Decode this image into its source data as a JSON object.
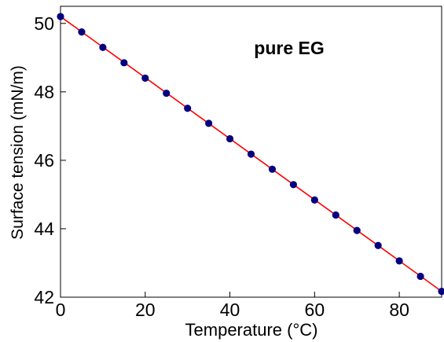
{
  "chart_data": {
    "type": "scatter",
    "annotation": "pure EG",
    "xlabel": "Temperature (°C)",
    "ylabel": "Surface tension (mN/m)",
    "xlim": [
      0,
      90
    ],
    "ylim": [
      42,
      50.5
    ],
    "xticks": [
      0,
      20,
      40,
      60,
      80
    ],
    "yticks": [
      42,
      44,
      46,
      48,
      50
    ],
    "grid": false,
    "legend": "none",
    "series": [
      {
        "kind": "points",
        "marker_color": "#000080",
        "x": [
          0,
          5,
          10,
          15,
          20,
          25,
          30,
          35,
          40,
          45,
          50,
          55,
          60,
          65,
          70,
          75,
          80,
          85,
          90
        ],
        "y": [
          50.2,
          49.75,
          49.3,
          48.85,
          48.4,
          47.96,
          47.52,
          47.08,
          46.63,
          46.18,
          45.74,
          45.29,
          44.84,
          44.4,
          43.95,
          43.51,
          43.06,
          42.61,
          42.17
        ]
      },
      {
        "kind": "fit-line",
        "line_color": "#ff0000",
        "x": [
          0,
          90
        ],
        "y": [
          50.2,
          42.17
        ]
      }
    ]
  }
}
